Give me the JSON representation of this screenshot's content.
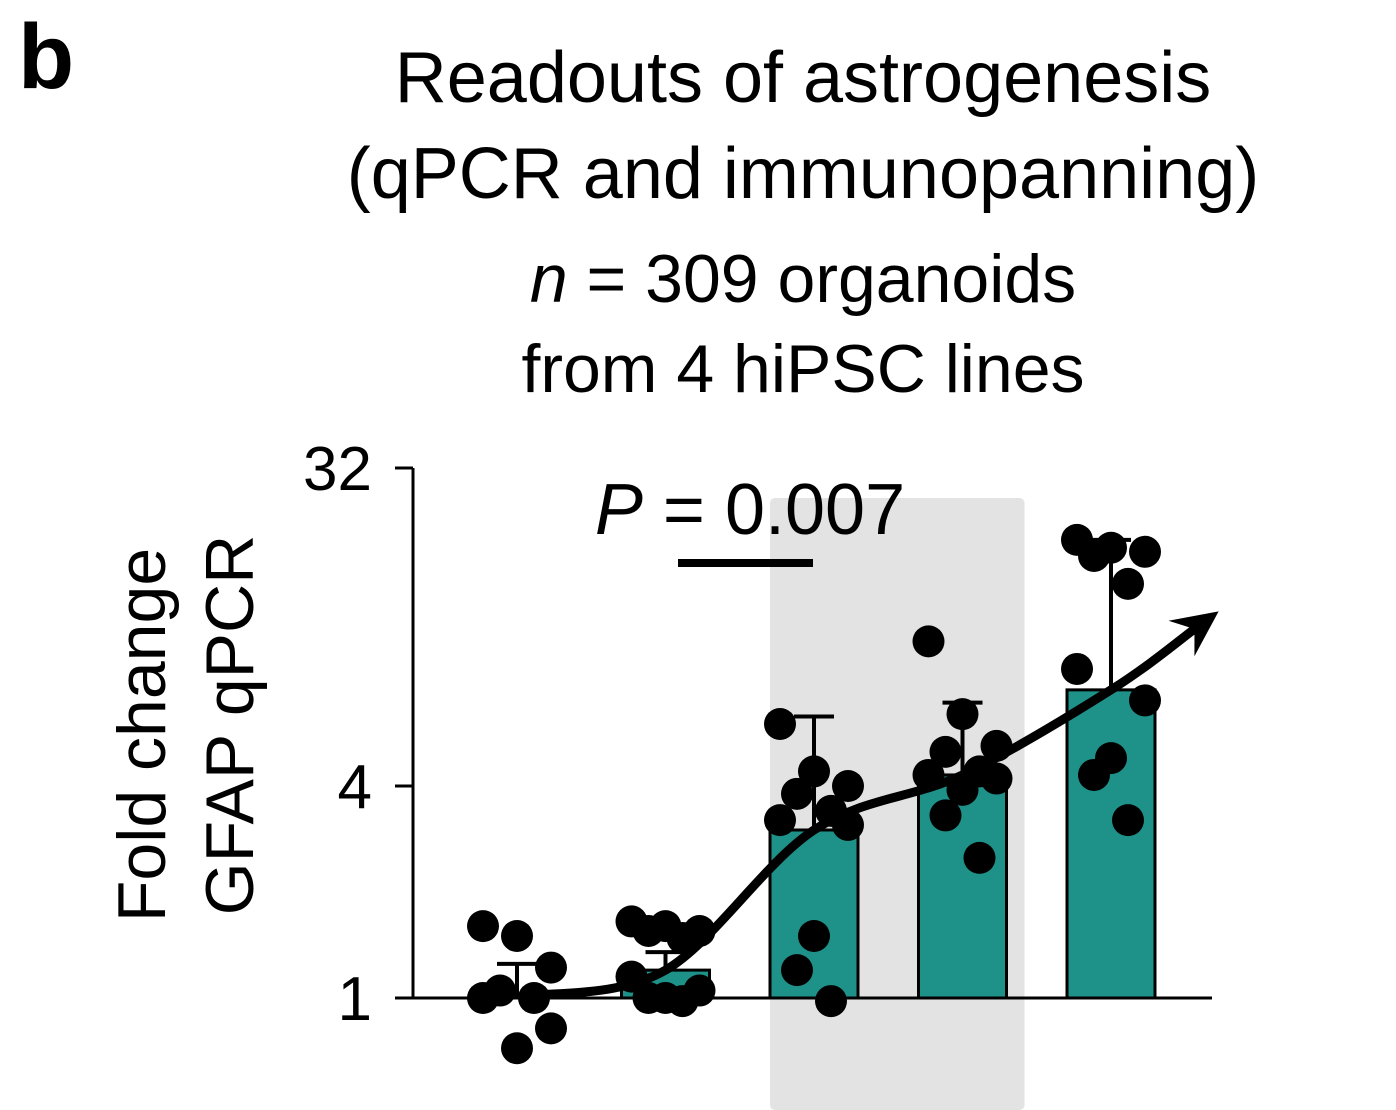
{
  "panel_label": "b",
  "title_line1": "Readouts of astrogenesis",
  "title_line2": "(qPCR and immunopanning)",
  "n_italic": "n",
  "n_rest": " = 309 organoids",
  "subtitle_line2": "from 4 hiPSC lines",
  "pvalue_italic": "P",
  "pvalue_rest": " = 0.007",
  "colors": {
    "bar": "#1e9189",
    "shade": "#e3e3e3",
    "ink": "#000000"
  },
  "chart_data": {
    "type": "bar",
    "title": "Readouts of astrogenesis (qPCR and immunopanning)",
    "ylabel_line1": "Fold change",
    "ylabel_line2": "GFAP qPCR",
    "y_scale": "log2",
    "ylim": [
      1,
      32
    ],
    "yticks": [
      1,
      4,
      32
    ],
    "ytick_labels": [
      "1",
      "4",
      "32"
    ],
    "groups": 5,
    "shaded_groups": [
      3,
      4
    ],
    "bars": [
      {
        "value": 1.0,
        "error_upper": 1.25
      },
      {
        "value": 1.2,
        "error_upper": 1.35
      },
      {
        "value": 3.0,
        "error_upper": 6.3
      },
      {
        "value": 4.3,
        "error_upper": 6.9
      },
      {
        "value": 7.5,
        "error_upper": 20.0
      }
    ],
    "points": [
      [
        1.6,
        1.5,
        1.22,
        1.05,
        1.0,
        1.0,
        0.82,
        0.72
      ],
      [
        1.65,
        1.6,
        1.55,
        1.55,
        1.48,
        1.15,
        1.05,
        1.0,
        1.0,
        0.98
      ],
      [
        6.0,
        4.4,
        4.0,
        3.8,
        3.4,
        3.2,
        3.1,
        1.5,
        1.2,
        0.98
      ],
      [
        10.3,
        6.4,
        5.2,
        5.0,
        4.4,
        4.3,
        4.2,
        3.9,
        3.3,
        2.5
      ],
      [
        20.0,
        19.0,
        18.5,
        18.0,
        15.0,
        8.6,
        7.0,
        4.8,
        4.3,
        3.2
      ]
    ],
    "comparison": {
      "from_group": 1,
      "to_group": 2,
      "label": "P = 0.007"
    },
    "trend": "increasing"
  }
}
